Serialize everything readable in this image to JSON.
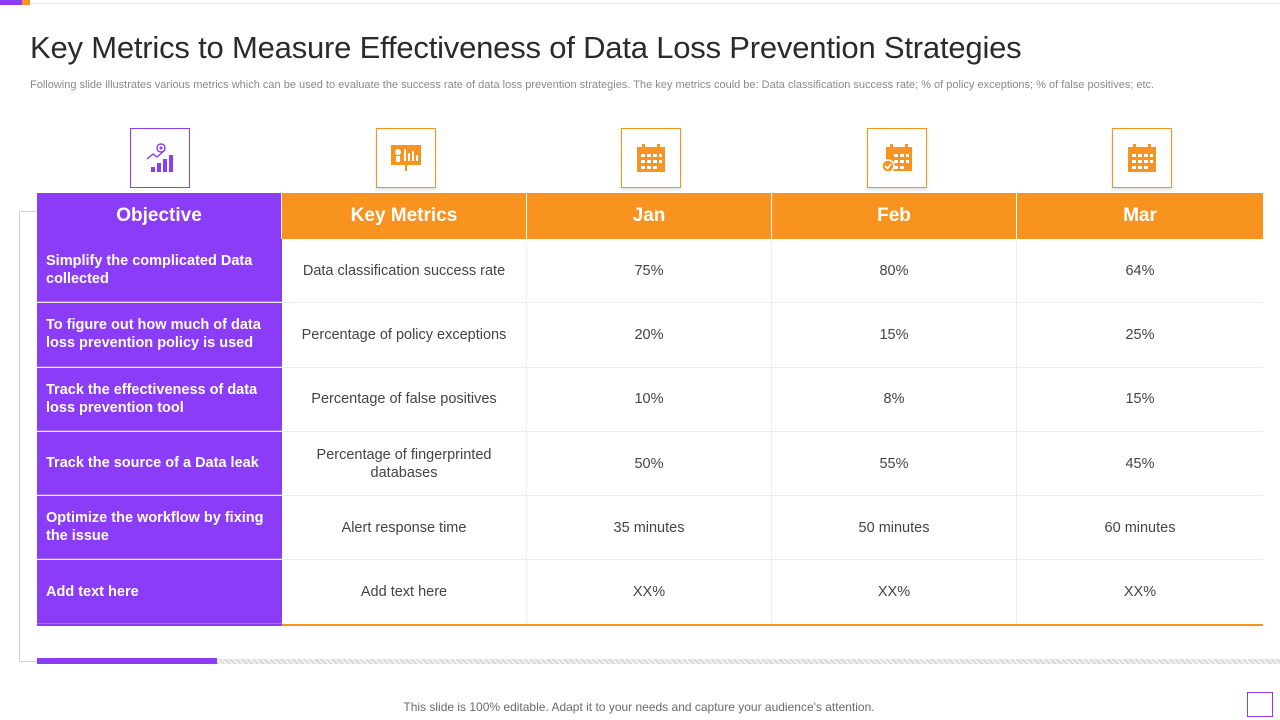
{
  "slide": {
    "title": "Key Metrics to Measure Effectiveness of Data Loss Prevention Strategies",
    "subtitle": "Following slide illustrates various metrics which can be used to evaluate the success rate of data loss prevention strategies. The key metrics could be: Data classification success rate; % of policy exceptions; % of false positives; etc.",
    "footer": "This slide is 100% editable. Adapt it to your needs and capture your audience's attention."
  },
  "colors": {
    "purple": "#8b3cf7",
    "orange": "#f7931e"
  },
  "icons": [
    "target-growth-chart-icon",
    "presentation-board-icon",
    "calendar-icon",
    "calendar-check-icon",
    "calendar-icon"
  ],
  "table": {
    "headers": [
      "Objective",
      "Key Metrics",
      "Jan",
      "Feb",
      "Mar"
    ],
    "rows": [
      {
        "objective": "Simplify the complicated Data collected",
        "metric": "Data classification success rate",
        "jan": "75%",
        "feb": "80%",
        "mar": "64%"
      },
      {
        "objective": "To figure out how much of data loss prevention policy is used",
        "metric": "Percentage of policy exceptions",
        "jan": "20%",
        "feb": "15%",
        "mar": "25%"
      },
      {
        "objective": "Track the effectiveness of data loss prevention tool",
        "metric": "Percentage of false positives",
        "jan": "10%",
        "feb": "8%",
        "mar": "15%"
      },
      {
        "objective": "Track the source of a Data leak",
        "metric": "Percentage of fingerprinted databases",
        "jan": "50%",
        "feb": "55%",
        "mar": "45%"
      },
      {
        "objective": "Optimize the workflow by fixing the issue",
        "metric": "Alert response time",
        "jan": "35 minutes",
        "feb": "50 minutes",
        "mar": "60 minutes"
      },
      {
        "objective": "Add text here",
        "metric": "Add text here",
        "jan": "XX%",
        "feb": "XX%",
        "mar": "XX%"
      }
    ]
  }
}
